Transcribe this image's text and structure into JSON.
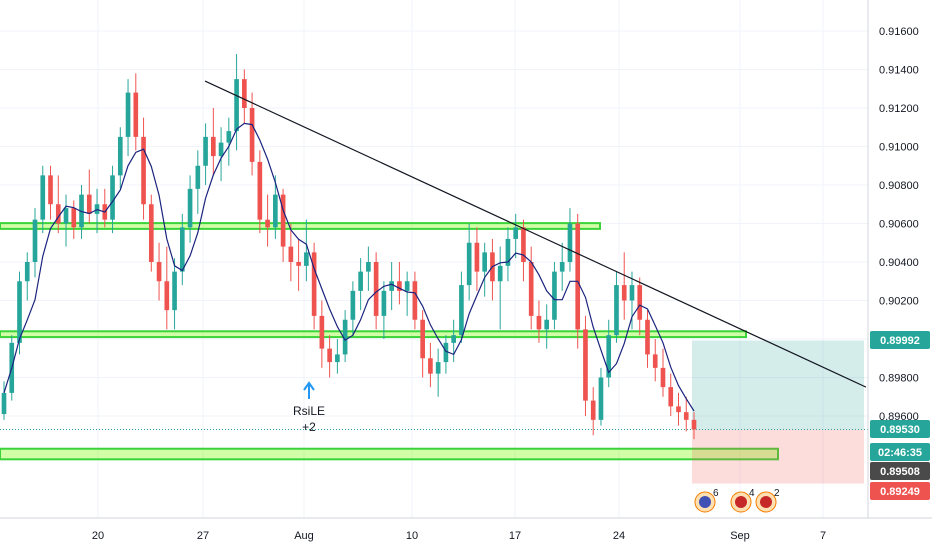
{
  "chart_data": {
    "type": "candlestick",
    "y_ticks": [
      "0.91600",
      "0.91400",
      "0.91200",
      "0.91000",
      "0.90800",
      "0.90600",
      "0.90400",
      "0.90200",
      "0.90000",
      "0.89800",
      "0.89600"
    ],
    "x_ticks": [
      "20",
      "27",
      "Aug",
      "10",
      "17",
      "24",
      "Sep",
      "7"
    ],
    "ylim": [
      0.892,
      0.9174
    ],
    "price_labels": [
      {
        "text": "0.89992",
        "color": "#26a69a"
      },
      {
        "text": "0.89530",
        "color": "#26a69a"
      },
      {
        "text": "02:46:35",
        "color": "#26a69a"
      },
      {
        "text": "0.89508",
        "color": "#4a4a4a"
      },
      {
        "text": "0.89249",
        "color": "#ef5350"
      }
    ],
    "horizontal_zones": [
      {
        "from": 0.90572,
        "to": 0.90602,
        "color": "#7cfc00"
      },
      {
        "from": 0.9001,
        "to": 0.9004,
        "color": "#7cfc00"
      },
      {
        "from": 0.89375,
        "to": 0.8943,
        "color": "#7cfc00"
      }
    ],
    "trendline": {
      "start": {
        "date": "Jul 27",
        "price": 0.9134
      },
      "end": {
        "date": "Sep 8",
        "price": 0.8975
      },
      "color": "#131722"
    },
    "position": {
      "entry": 0.8953,
      "target": 0.89992,
      "stop": 0.89249
    },
    "current_price_line": 0.8953,
    "colors": {
      "up": "#26a69a",
      "down": "#ef5350",
      "ma": "#1a237e",
      "grid": "#f0f3fa"
    },
    "candles": [
      {
        "o": 0.8961,
        "h": 0.8978,
        "l": 0.8958,
        "c": 0.8972
      },
      {
        "o": 0.8972,
        "h": 0.9002,
        "l": 0.8968,
        "c": 0.8998
      },
      {
        "o": 0.8998,
        "h": 0.9035,
        "l": 0.8992,
        "c": 0.903
      },
      {
        "o": 0.903,
        "h": 0.9045,
        "l": 0.902,
        "c": 0.904
      },
      {
        "o": 0.904,
        "h": 0.9068,
        "l": 0.9032,
        "c": 0.9062
      },
      {
        "o": 0.9062,
        "h": 0.909,
        "l": 0.9055,
        "c": 0.9085
      },
      {
        "o": 0.9085,
        "h": 0.909,
        "l": 0.9062,
        "c": 0.907
      },
      {
        "o": 0.907,
        "h": 0.9085,
        "l": 0.9055,
        "c": 0.906
      },
      {
        "o": 0.906,
        "h": 0.9075,
        "l": 0.9048,
        "c": 0.9068
      },
      {
        "o": 0.9068,
        "h": 0.9072,
        "l": 0.9052,
        "c": 0.9058
      },
      {
        "o": 0.9058,
        "h": 0.908,
        "l": 0.9052,
        "c": 0.9075
      },
      {
        "o": 0.9075,
        "h": 0.9088,
        "l": 0.906,
        "c": 0.9065
      },
      {
        "o": 0.9065,
        "h": 0.9078,
        "l": 0.9055,
        "c": 0.907
      },
      {
        "o": 0.907,
        "h": 0.9078,
        "l": 0.9058,
        "c": 0.9062
      },
      {
        "o": 0.9062,
        "h": 0.909,
        "l": 0.9055,
        "c": 0.9085
      },
      {
        "o": 0.9085,
        "h": 0.911,
        "l": 0.9078,
        "c": 0.9105
      },
      {
        "o": 0.9105,
        "h": 0.9135,
        "l": 0.9095,
        "c": 0.9128
      },
      {
        "o": 0.9128,
        "h": 0.9138,
        "l": 0.9098,
        "c": 0.9105
      },
      {
        "o": 0.9105,
        "h": 0.9115,
        "l": 0.9062,
        "c": 0.907
      },
      {
        "o": 0.907,
        "h": 0.9075,
        "l": 0.9035,
        "c": 0.904
      },
      {
        "o": 0.904,
        "h": 0.905,
        "l": 0.902,
        "c": 0.903
      },
      {
        "o": 0.903,
        "h": 0.9048,
        "l": 0.9005,
        "c": 0.9015
      },
      {
        "o": 0.9015,
        "h": 0.9042,
        "l": 0.9005,
        "c": 0.9035
      },
      {
        "o": 0.9035,
        "h": 0.9065,
        "l": 0.9028,
        "c": 0.9058
      },
      {
        "o": 0.9058,
        "h": 0.9085,
        "l": 0.905,
        "c": 0.9078
      },
      {
        "o": 0.9078,
        "h": 0.9098,
        "l": 0.9065,
        "c": 0.909
      },
      {
        "o": 0.909,
        "h": 0.9112,
        "l": 0.908,
        "c": 0.9105
      },
      {
        "o": 0.9105,
        "h": 0.912,
        "l": 0.9085,
        "c": 0.9095
      },
      {
        "o": 0.9095,
        "h": 0.911,
        "l": 0.9082,
        "c": 0.9102
      },
      {
        "o": 0.9102,
        "h": 0.9115,
        "l": 0.909,
        "c": 0.9108
      },
      {
        "o": 0.9108,
        "h": 0.9148,
        "l": 0.9098,
        "c": 0.9135
      },
      {
        "o": 0.9135,
        "h": 0.914,
        "l": 0.9112,
        "c": 0.912
      },
      {
        "o": 0.912,
        "h": 0.9128,
        "l": 0.9085,
        "c": 0.9092
      },
      {
        "o": 0.9092,
        "h": 0.9098,
        "l": 0.9055,
        "c": 0.9062
      },
      {
        "o": 0.9062,
        "h": 0.9075,
        "l": 0.9048,
        "c": 0.9058
      },
      {
        "o": 0.9058,
        "h": 0.9085,
        "l": 0.9052,
        "c": 0.9075
      },
      {
        "o": 0.9075,
        "h": 0.9078,
        "l": 0.904,
        "c": 0.9048
      },
      {
        "o": 0.9048,
        "h": 0.906,
        "l": 0.903,
        "c": 0.904
      },
      {
        "o": 0.904,
        "h": 0.9052,
        "l": 0.9025,
        "c": 0.9038
      },
      {
        "o": 0.9038,
        "h": 0.9062,
        "l": 0.903,
        "c": 0.9045
      },
      {
        "o": 0.9045,
        "h": 0.905,
        "l": 0.9005,
        "c": 0.9012
      },
      {
        "o": 0.9012,
        "h": 0.902,
        "l": 0.8985,
        "c": 0.8995
      },
      {
        "o": 0.8995,
        "h": 0.9002,
        "l": 0.898,
        "c": 0.8988
      },
      {
        "o": 0.8988,
        "h": 0.9,
        "l": 0.8982,
        "c": 0.8992
      },
      {
        "o": 0.8992,
        "h": 0.9015,
        "l": 0.8988,
        "c": 0.901
      },
      {
        "o": 0.901,
        "h": 0.903,
        "l": 0.9002,
        "c": 0.9025
      },
      {
        "o": 0.9025,
        "h": 0.9042,
        "l": 0.9015,
        "c": 0.9035
      },
      {
        "o": 0.9035,
        "h": 0.9048,
        "l": 0.9025,
        "c": 0.904
      },
      {
        "o": 0.904,
        "h": 0.9045,
        "l": 0.9005,
        "c": 0.9012
      },
      {
        "o": 0.9012,
        "h": 0.903,
        "l": 0.9,
        "c": 0.9025
      },
      {
        "o": 0.9025,
        "h": 0.904,
        "l": 0.9015,
        "c": 0.903
      },
      {
        "o": 0.903,
        "h": 0.904,
        "l": 0.9018,
        "c": 0.9025
      },
      {
        "o": 0.9025,
        "h": 0.9035,
        "l": 0.9012,
        "c": 0.903
      },
      {
        "o": 0.903,
        "h": 0.9035,
        "l": 0.9005,
        "c": 0.901
      },
      {
        "o": 0.901,
        "h": 0.9015,
        "l": 0.898,
        "c": 0.899
      },
      {
        "o": 0.899,
        "h": 0.8998,
        "l": 0.8975,
        "c": 0.8982
      },
      {
        "o": 0.8982,
        "h": 0.8995,
        "l": 0.897,
        "c": 0.8988
      },
      {
        "o": 0.8988,
        "h": 0.9002,
        "l": 0.8982,
        "c": 0.8998
      },
      {
        "o": 0.8998,
        "h": 0.901,
        "l": 0.8988,
        "c": 0.9002
      },
      {
        "o": 0.9002,
        "h": 0.9035,
        "l": 0.8998,
        "c": 0.9028
      },
      {
        "o": 0.9028,
        "h": 0.906,
        "l": 0.902,
        "c": 0.905
      },
      {
        "o": 0.905,
        "h": 0.9058,
        "l": 0.9025,
        "c": 0.9035
      },
      {
        "o": 0.9035,
        "h": 0.905,
        "l": 0.9022,
        "c": 0.9045
      },
      {
        "o": 0.9045,
        "h": 0.9052,
        "l": 0.902,
        "c": 0.903
      },
      {
        "o": 0.903,
        "h": 0.9048,
        "l": 0.9005,
        "c": 0.9038
      },
      {
        "o": 0.9038,
        "h": 0.9058,
        "l": 0.903,
        "c": 0.9052
      },
      {
        "o": 0.9052,
        "h": 0.9065,
        "l": 0.9042,
        "c": 0.9058
      },
      {
        "o": 0.9058,
        "h": 0.9062,
        "l": 0.903,
        "c": 0.904
      },
      {
        "o": 0.904,
        "h": 0.9048,
        "l": 0.9005,
        "c": 0.9012
      },
      {
        "o": 0.9012,
        "h": 0.902,
        "l": 0.8998,
        "c": 0.9005
      },
      {
        "o": 0.9005,
        "h": 0.9018,
        "l": 0.8995,
        "c": 0.901
      },
      {
        "o": 0.901,
        "h": 0.904,
        "l": 0.9005,
        "c": 0.9035
      },
      {
        "o": 0.9035,
        "h": 0.905,
        "l": 0.9025,
        "c": 0.904
      },
      {
        "o": 0.904,
        "h": 0.9068,
        "l": 0.9035,
        "c": 0.906
      },
      {
        "o": 0.906,
        "h": 0.9065,
        "l": 0.8995,
        "c": 0.9005
      },
      {
        "o": 0.9005,
        "h": 0.9012,
        "l": 0.896,
        "c": 0.8968
      },
      {
        "o": 0.8968,
        "h": 0.8975,
        "l": 0.895,
        "c": 0.8958
      },
      {
        "o": 0.8958,
        "h": 0.8985,
        "l": 0.8955,
        "c": 0.898
      },
      {
        "o": 0.898,
        "h": 0.901,
        "l": 0.8975,
        "c": 0.9002
      },
      {
        "o": 0.9002,
        "h": 0.9035,
        "l": 0.8998,
        "c": 0.9028
      },
      {
        "o": 0.9028,
        "h": 0.9045,
        "l": 0.901,
        "c": 0.902
      },
      {
        "o": 0.902,
        "h": 0.9035,
        "l": 0.9005,
        "c": 0.9028
      },
      {
        "o": 0.9028,
        "h": 0.9032,
        "l": 0.9002,
        "c": 0.901
      },
      {
        "o": 0.901,
        "h": 0.9015,
        "l": 0.8985,
        "c": 0.8992
      },
      {
        "o": 0.8992,
        "h": 0.9,
        "l": 0.8978,
        "c": 0.8985
      },
      {
        "o": 0.8985,
        "h": 0.8995,
        "l": 0.897,
        "c": 0.8975
      },
      {
        "o": 0.8975,
        "h": 0.8982,
        "l": 0.896,
        "c": 0.8965
      },
      {
        "o": 0.8965,
        "h": 0.8972,
        "l": 0.8955,
        "c": 0.8962
      },
      {
        "o": 0.8962,
        "h": 0.897,
        "l": 0.8952,
        "c": 0.8958
      },
      {
        "o": 0.8958,
        "h": 0.8962,
        "l": 0.8948,
        "c": 0.8953
      }
    ]
  },
  "annotations": {
    "signal_name": "RsiLE",
    "signal_value": "+2",
    "events": [
      {
        "count": "6"
      },
      {
        "count": "4"
      },
      {
        "count": "2"
      }
    ]
  }
}
